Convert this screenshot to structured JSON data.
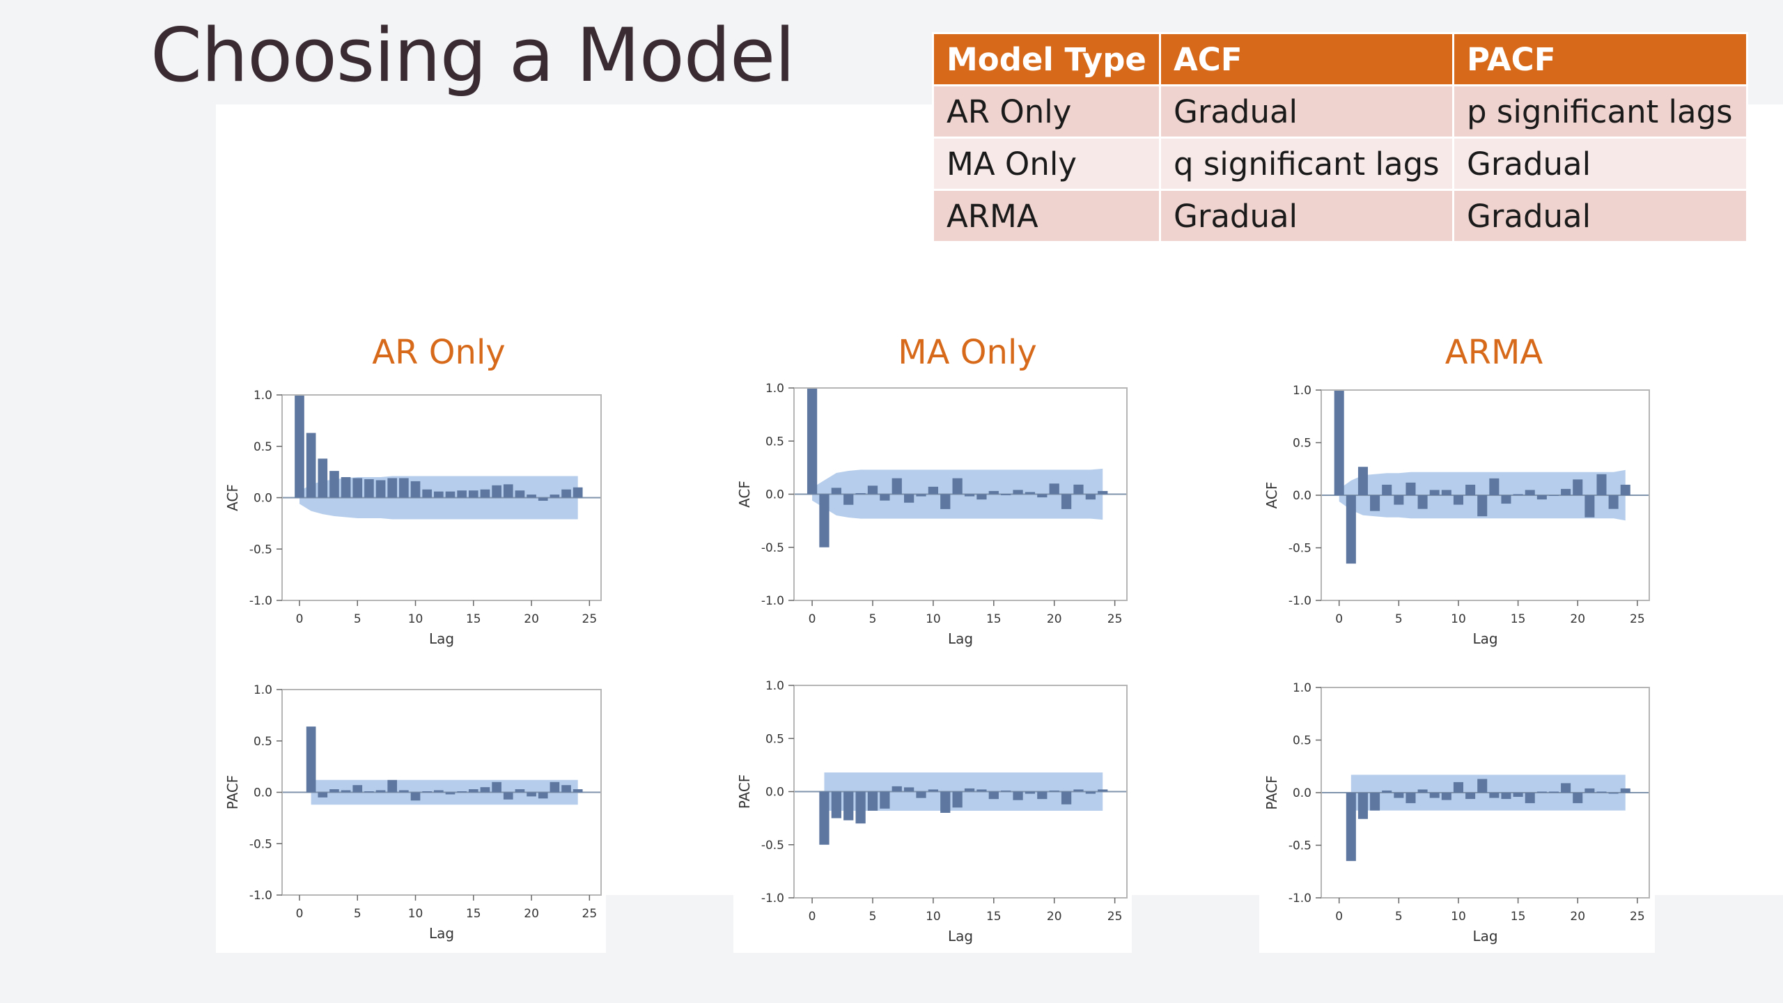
{
  "slide": {
    "title": "Choosing a Model"
  },
  "table": {
    "headers": [
      "Model Type",
      "ACF",
      "PACF"
    ],
    "rows": [
      [
        "AR Only",
        "Gradual",
        "p significant lags"
      ],
      [
        "MA Only",
        "q significant lags",
        "Gradual"
      ],
      [
        "ARMA",
        "Gradual",
        "Gradual"
      ]
    ]
  },
  "columns": [
    {
      "title": "AR Only"
    },
    {
      "title": "MA Only"
    },
    {
      "title": "ARMA"
    }
  ],
  "colors": {
    "accent": "#d66a1a",
    "bar": "#5d77a0",
    "band": "#a9c6e8",
    "zero_line": "#7f93ad",
    "header_bg": "#d66a1a",
    "row_odd": "#efd3ce",
    "row_even": "#f7e9e7"
  },
  "chart_data": [
    {
      "type": "bar",
      "panel": "AR Only ACF",
      "xlabel": "Lag",
      "ylabel": "ACF",
      "xlim": [
        -1.5,
        26
      ],
      "ylim": [
        -1.0,
        1.0
      ],
      "xticks": [
        0,
        5,
        10,
        15,
        20,
        25
      ],
      "yticks": [
        "1.0",
        "0.5",
        "0.0",
        "-0.5",
        "-1.0"
      ],
      "x": [
        0,
        1,
        2,
        3,
        4,
        5,
        6,
        7,
        8,
        9,
        10,
        11,
        12,
        13,
        14,
        15,
        16,
        17,
        18,
        19,
        20,
        21,
        22,
        23,
        24
      ],
      "values": [
        1.0,
        0.63,
        0.38,
        0.26,
        0.2,
        0.19,
        0.18,
        0.17,
        0.19,
        0.19,
        0.16,
        0.08,
        0.06,
        0.06,
        0.07,
        0.07,
        0.08,
        0.12,
        0.13,
        0.07,
        0.03,
        -0.03,
        0.03,
        0.08,
        0.1
      ],
      "band_upper": [
        0.06,
        0.13,
        0.16,
        0.18,
        0.19,
        0.2,
        0.2,
        0.2,
        0.21,
        0.21,
        0.21,
        0.21,
        0.21,
        0.21,
        0.21,
        0.21,
        0.21,
        0.21,
        0.21,
        0.21,
        0.21,
        0.21,
        0.21,
        0.21,
        0.21
      ]
    },
    {
      "type": "bar",
      "panel": "AR Only PACF",
      "xlabel": "Lag",
      "ylabel": "PACF",
      "xlim": [
        -1.5,
        26
      ],
      "ylim": [
        -1.0,
        1.0
      ],
      "xticks": [
        0,
        5,
        10,
        15,
        20,
        25
      ],
      "yticks": [
        "1.0",
        "0.5",
        "0.0",
        "-0.5",
        "-1.0"
      ],
      "x": [
        1,
        2,
        3,
        4,
        5,
        6,
        7,
        8,
        9,
        10,
        11,
        12,
        13,
        14,
        15,
        16,
        17,
        18,
        19,
        20,
        21,
        22,
        23,
        24
      ],
      "values": [
        0.64,
        -0.05,
        0.03,
        0.02,
        0.07,
        0.01,
        0.02,
        0.12,
        0.02,
        -0.08,
        0.01,
        0.02,
        -0.02,
        0.01,
        0.03,
        0.05,
        0.1,
        -0.07,
        0.03,
        -0.04,
        -0.06,
        0.1,
        0.07,
        0.03
      ],
      "band_upper": [
        0.12,
        0.12,
        0.12,
        0.12,
        0.12,
        0.12,
        0.12,
        0.12,
        0.12,
        0.12,
        0.12,
        0.12,
        0.12,
        0.12,
        0.12,
        0.12,
        0.12,
        0.12,
        0.12,
        0.12,
        0.12,
        0.12,
        0.12,
        0.12
      ]
    },
    {
      "type": "bar",
      "panel": "MA Only ACF",
      "xlabel": "Lag",
      "ylabel": "ACF",
      "xlim": [
        -1.5,
        26
      ],
      "ylim": [
        -1.0,
        1.0
      ],
      "xticks": [
        0,
        5,
        10,
        15,
        20,
        25
      ],
      "yticks": [
        "1.0",
        "0.5",
        "0.0",
        "-0.5",
        "-1.0"
      ],
      "x": [
        0,
        1,
        2,
        3,
        4,
        5,
        6,
        7,
        8,
        9,
        10,
        11,
        12,
        13,
        14,
        15,
        16,
        17,
        18,
        19,
        20,
        21,
        22,
        23,
        24
      ],
      "values": [
        1.0,
        -0.5,
        0.06,
        -0.1,
        0.01,
        0.08,
        -0.06,
        0.15,
        -0.08,
        -0.02,
        0.07,
        -0.14,
        0.15,
        -0.02,
        -0.05,
        0.03,
        -0.01,
        0.04,
        0.02,
        -0.03,
        0.1,
        -0.14,
        0.09,
        -0.05,
        0.03
      ],
      "band_upper": [
        0.06,
        0.13,
        0.2,
        0.22,
        0.23,
        0.23,
        0.23,
        0.23,
        0.23,
        0.23,
        0.23,
        0.23,
        0.23,
        0.23,
        0.23,
        0.23,
        0.23,
        0.23,
        0.23,
        0.23,
        0.23,
        0.23,
        0.23,
        0.23,
        0.24
      ]
    },
    {
      "type": "bar",
      "panel": "MA Only PACF",
      "xlabel": "Lag",
      "ylabel": "PACF",
      "xlim": [
        -1.5,
        26
      ],
      "ylim": [
        -1.0,
        1.0
      ],
      "xticks": [
        0,
        5,
        10,
        15,
        20,
        25
      ],
      "yticks": [
        "1.0",
        "0.5",
        "0.0",
        "-0.5",
        "-1.0"
      ],
      "x": [
        1,
        2,
        3,
        4,
        5,
        6,
        7,
        8,
        9,
        10,
        11,
        12,
        13,
        14,
        15,
        16,
        17,
        18,
        19,
        20,
        21,
        22,
        23,
        24
      ],
      "values": [
        -0.5,
        -0.25,
        -0.27,
        -0.3,
        -0.18,
        -0.16,
        0.05,
        0.04,
        -0.06,
        0.02,
        -0.2,
        -0.15,
        0.03,
        0.02,
        -0.07,
        0.01,
        -0.08,
        -0.02,
        -0.07,
        0.01,
        -0.12,
        0.02,
        -0.02,
        0.02
      ],
      "band_upper": [
        0.18,
        0.18,
        0.18,
        0.18,
        0.18,
        0.18,
        0.18,
        0.18,
        0.18,
        0.18,
        0.18,
        0.18,
        0.18,
        0.18,
        0.18,
        0.18,
        0.18,
        0.18,
        0.18,
        0.18,
        0.18,
        0.18,
        0.18,
        0.18
      ]
    },
    {
      "type": "bar",
      "panel": "ARMA ACF",
      "xlabel": "Lag",
      "ylabel": "ACF",
      "xlim": [
        -1.5,
        26
      ],
      "ylim": [
        -1.0,
        1.0
      ],
      "xticks": [
        0,
        5,
        10,
        15,
        20,
        25
      ],
      "yticks": [
        "1.0",
        "0.5",
        "0.0",
        "-0.5",
        "-1.0"
      ],
      "x": [
        0,
        1,
        2,
        3,
        4,
        5,
        6,
        7,
        8,
        9,
        10,
        11,
        12,
        13,
        14,
        15,
        16,
        17,
        18,
        19,
        20,
        21,
        22,
        23,
        24
      ],
      "values": [
        1.0,
        -0.65,
        0.27,
        -0.15,
        0.1,
        -0.09,
        0.12,
        -0.13,
        0.05,
        0.05,
        -0.09,
        0.1,
        -0.2,
        0.16,
        -0.08,
        0.01,
        0.05,
        -0.04,
        0.0,
        0.06,
        0.15,
        -0.21,
        0.2,
        -0.13,
        0.1
      ],
      "band_upper": [
        0.06,
        0.14,
        0.19,
        0.2,
        0.21,
        0.21,
        0.22,
        0.22,
        0.22,
        0.22,
        0.22,
        0.22,
        0.22,
        0.22,
        0.22,
        0.22,
        0.22,
        0.22,
        0.22,
        0.22,
        0.22,
        0.22,
        0.22,
        0.22,
        0.24
      ]
    },
    {
      "type": "bar",
      "panel": "ARMA PACF",
      "xlabel": "Lag",
      "ylabel": "PACF",
      "xlim": [
        -1.5,
        26
      ],
      "ylim": [
        -1.0,
        1.0
      ],
      "xticks": [
        0,
        5,
        10,
        15,
        20,
        25
      ],
      "yticks": [
        "1.0",
        "0.5",
        "0.0",
        "-0.5",
        "-1.0"
      ],
      "x": [
        1,
        2,
        3,
        4,
        5,
        6,
        7,
        8,
        9,
        10,
        11,
        12,
        13,
        14,
        15,
        16,
        17,
        18,
        19,
        20,
        21,
        22,
        23,
        24
      ],
      "values": [
        -0.65,
        -0.25,
        -0.17,
        0.02,
        -0.05,
        -0.1,
        0.03,
        -0.05,
        -0.07,
        0.1,
        -0.06,
        0.13,
        -0.05,
        -0.06,
        -0.04,
        -0.1,
        0.01,
        0.01,
        0.09,
        -0.1,
        0.04,
        0.01,
        -0.01,
        0.04
      ],
      "band_upper": [
        0.17,
        0.17,
        0.17,
        0.17,
        0.17,
        0.17,
        0.17,
        0.17,
        0.17,
        0.17,
        0.17,
        0.17,
        0.17,
        0.17,
        0.17,
        0.17,
        0.17,
        0.17,
        0.17,
        0.17,
        0.17,
        0.17,
        0.17,
        0.17
      ]
    }
  ]
}
